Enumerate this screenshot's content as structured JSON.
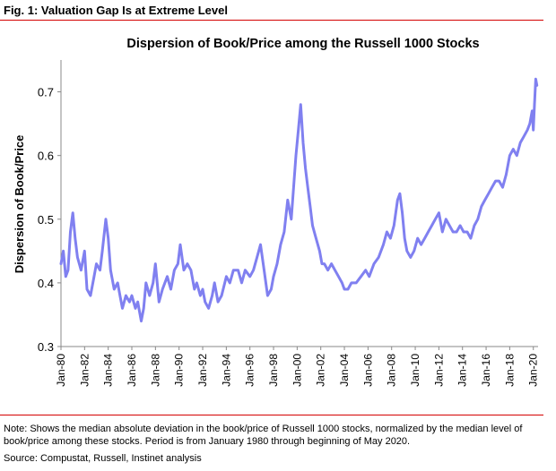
{
  "figure": {
    "label": "Fig. 1:  Valuation Gap Is at Extreme Level",
    "note": "Note: Shows the median absolute deviation in the book/price of Russell 1000 stocks, normalized by the median level of book/price among these stocks. Period is from January 1980 through beginning of May 2020.",
    "source": "Source: Compustat, Russell, Instinet analysis"
  },
  "colors": {
    "series": "#8080f0",
    "rule": "#d40000"
  },
  "chart_data": {
    "type": "line",
    "title": "Dispersion of Book/Price among the Russell 1000 Stocks",
    "xlabel": "",
    "ylabel": "Dispersion of Book/Price",
    "xlim": [
      1980,
      2020.4
    ],
    "ylim": [
      0.3,
      0.75
    ],
    "yticks": [
      0.3,
      0.4,
      0.5,
      0.6,
      0.7
    ],
    "xticks": [
      1980,
      1982,
      1984,
      1986,
      1988,
      1990,
      1992,
      1994,
      1996,
      1998,
      2000,
      2002,
      2004,
      2006,
      2008,
      2010,
      2012,
      2014,
      2016,
      2018,
      2020
    ],
    "xticklabels": [
      "Jan-80",
      "Jan-82",
      "Jan-84",
      "Jan-86",
      "Jan-88",
      "Jan-90",
      "Jan-92",
      "Jan-94",
      "Jan-96",
      "Jan-98",
      "Jan-00",
      "Jan-02",
      "Jan-04",
      "Jan-06",
      "Jan-08",
      "Jan-10",
      "Jan-12",
      "Jan-14",
      "Jan-16",
      "Jan-18",
      "Jan-20"
    ],
    "grid": false,
    "legend": "none",
    "series": [
      {
        "name": "",
        "x": [
          1980.0,
          1980.2,
          1980.4,
          1980.6,
          1980.8,
          1981.0,
          1981.2,
          1981.4,
          1981.7,
          1982.0,
          1982.2,
          1982.5,
          1982.8,
          1983.0,
          1983.3,
          1983.5,
          1983.8,
          1984.0,
          1984.2,
          1984.5,
          1984.8,
          1985.0,
          1985.2,
          1985.5,
          1985.8,
          1986.0,
          1986.3,
          1986.5,
          1986.8,
          1987.0,
          1987.2,
          1987.5,
          1987.8,
          1988.0,
          1988.3,
          1988.6,
          1989.0,
          1989.3,
          1989.6,
          1989.9,
          1990.1,
          1990.4,
          1990.7,
          1991.0,
          1991.3,
          1991.5,
          1991.8,
          1992.0,
          1992.2,
          1992.5,
          1992.8,
          1993.0,
          1993.3,
          1993.6,
          1994.0,
          1994.3,
          1994.6,
          1995.0,
          1995.3,
          1995.6,
          1996.0,
          1996.3,
          1996.6,
          1996.9,
          1997.2,
          1997.5,
          1997.8,
          1998.0,
          1998.3,
          1998.6,
          1998.9,
          1999.2,
          1999.5,
          1999.7,
          1999.9,
          2000.1,
          2000.3,
          2000.5,
          2000.7,
          2000.9,
          2001.1,
          2001.3,
          2001.6,
          2001.9,
          2002.1,
          2002.3,
          2002.6,
          2002.9,
          2003.2,
          2003.5,
          2003.8,
          2004.0,
          2004.3,
          2004.6,
          2005.0,
          2005.4,
          2005.8,
          2006.1,
          2006.5,
          2006.9,
          2007.3,
          2007.6,
          2007.9,
          2008.2,
          2008.5,
          2008.7,
          2008.9,
          2009.1,
          2009.3,
          2009.6,
          2009.9,
          2010.2,
          2010.5,
          2010.8,
          2011.1,
          2011.4,
          2011.7,
          2012.0,
          2012.3,
          2012.6,
          2012.9,
          2013.2,
          2013.5,
          2013.8,
          2014.1,
          2014.4,
          2014.7,
          2015.0,
          2015.3,
          2015.6,
          2015.9,
          2016.2,
          2016.5,
          2016.8,
          2017.1,
          2017.4,
          2017.7,
          2018.0,
          2018.3,
          2018.6,
          2018.9,
          2019.2,
          2019.5,
          2019.7,
          2019.9,
          2020.0,
          2020.1,
          2020.2,
          2020.3
        ],
        "y": [
          0.43,
          0.45,
          0.41,
          0.42,
          0.48,
          0.51,
          0.47,
          0.44,
          0.42,
          0.45,
          0.39,
          0.38,
          0.41,
          0.43,
          0.42,
          0.45,
          0.5,
          0.47,
          0.42,
          0.39,
          0.4,
          0.38,
          0.36,
          0.38,
          0.37,
          0.38,
          0.36,
          0.37,
          0.34,
          0.36,
          0.4,
          0.38,
          0.4,
          0.43,
          0.37,
          0.39,
          0.41,
          0.39,
          0.42,
          0.43,
          0.46,
          0.42,
          0.43,
          0.42,
          0.39,
          0.4,
          0.38,
          0.39,
          0.37,
          0.36,
          0.38,
          0.4,
          0.37,
          0.38,
          0.41,
          0.4,
          0.42,
          0.42,
          0.4,
          0.42,
          0.41,
          0.42,
          0.44,
          0.46,
          0.42,
          0.38,
          0.39,
          0.41,
          0.43,
          0.46,
          0.48,
          0.53,
          0.5,
          0.55,
          0.6,
          0.64,
          0.68,
          0.62,
          0.58,
          0.55,
          0.52,
          0.49,
          0.47,
          0.45,
          0.43,
          0.43,
          0.42,
          0.43,
          0.42,
          0.41,
          0.4,
          0.39,
          0.39,
          0.4,
          0.4,
          0.41,
          0.42,
          0.41,
          0.43,
          0.44,
          0.46,
          0.48,
          0.47,
          0.49,
          0.53,
          0.54,
          0.51,
          0.47,
          0.45,
          0.44,
          0.45,
          0.47,
          0.46,
          0.47,
          0.48,
          0.49,
          0.5,
          0.51,
          0.48,
          0.5,
          0.49,
          0.48,
          0.48,
          0.49,
          0.48,
          0.48,
          0.47,
          0.49,
          0.5,
          0.52,
          0.53,
          0.54,
          0.55,
          0.56,
          0.56,
          0.55,
          0.57,
          0.6,
          0.61,
          0.6,
          0.62,
          0.63,
          0.64,
          0.65,
          0.67,
          0.64,
          0.68,
          0.72,
          0.71
        ]
      }
    ]
  }
}
